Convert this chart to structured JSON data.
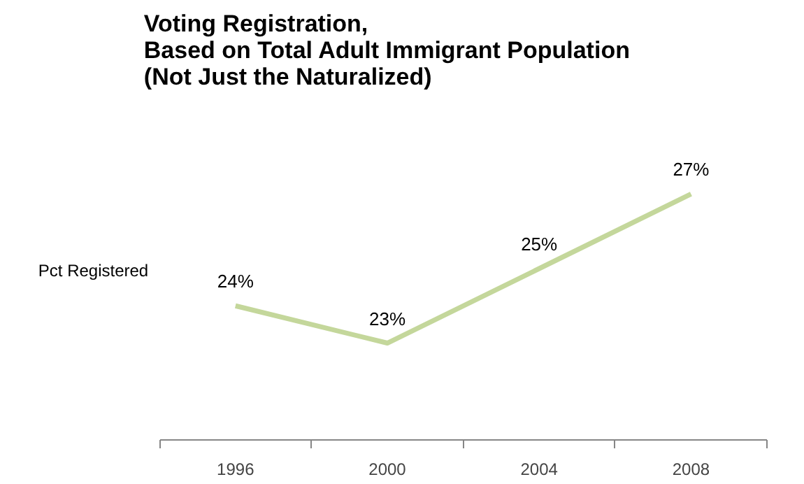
{
  "chart_data": {
    "type": "line",
    "title": "Voting Registration,\nBased on Total Adult Immigrant Population\n(Not Just the Naturalized)",
    "categories": [
      "1996",
      "2000",
      "2004",
      "2008"
    ],
    "series": [
      {
        "name": "Pct Registered",
        "color": "#c4d79b",
        "values": [
          24,
          23,
          25,
          27
        ],
        "value_labels": [
          "24%",
          "23%",
          "25%",
          "27%"
        ]
      }
    ],
    "grid": false,
    "marker": "none",
    "line_style": "solid"
  }
}
